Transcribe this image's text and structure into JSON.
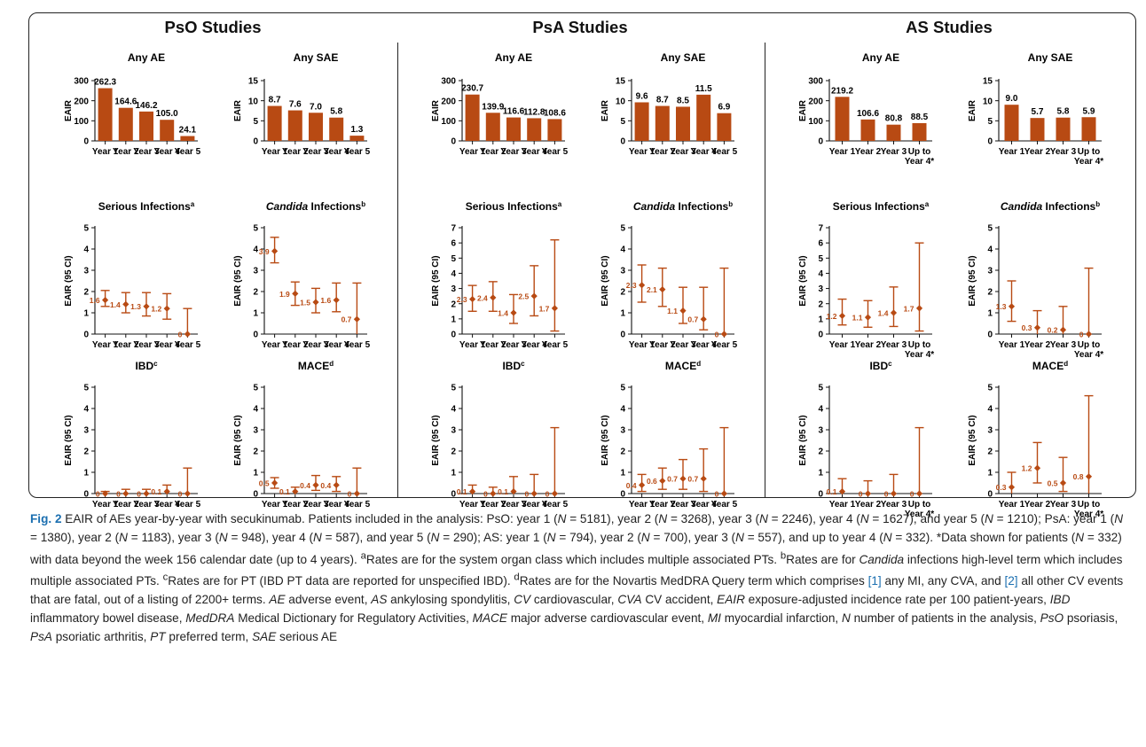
{
  "panels": [
    {
      "title": "PsO Studies"
    },
    {
      "title": "PsA Studies"
    },
    {
      "title": "AS Studies"
    }
  ],
  "chart_data": [
    {
      "type": "bar",
      "panel": "PsO Studies",
      "title": "Any AE",
      "ylabel": "EAIR",
      "ylim": [
        0,
        300
      ],
      "yticks": [
        0,
        100,
        200,
        300
      ],
      "categories": [
        "Year 1",
        "Year 2",
        "Year 3",
        "Year 4",
        "Year 5"
      ],
      "values": [
        262.3,
        164.6,
        146.2,
        105.0,
        24.1
      ],
      "labels": [
        "262.3",
        "164.6",
        "146.2",
        "105.0",
        "24.1"
      ],
      "color": "#b84a13"
    },
    {
      "type": "bar",
      "panel": "PsO Studies",
      "title": "Any SAE",
      "ylabel": "EAIR",
      "ylim": [
        0,
        15
      ],
      "yticks": [
        0,
        5,
        10,
        15
      ],
      "categories": [
        "Year 1",
        "Year 2",
        "Year 3",
        "Year 4",
        "Year 5"
      ],
      "values": [
        8.7,
        7.6,
        7.0,
        5.8,
        1.3
      ],
      "labels": [
        "8.7",
        "7.6",
        "7.0",
        "5.8",
        "1.3"
      ],
      "color": "#b84a13"
    },
    {
      "type": "bar",
      "panel": "PsA Studies",
      "title": "Any AE",
      "ylabel": "EAIR",
      "ylim": [
        0,
        300
      ],
      "yticks": [
        0,
        100,
        200,
        300
      ],
      "categories": [
        "Year 1",
        "Year 2",
        "Year 3",
        "Year 4",
        "Year 5"
      ],
      "values": [
        230.7,
        139.9,
        116.6,
        112.8,
        108.6
      ],
      "labels": [
        "230.7",
        "139.9",
        "116.6",
        "112.8",
        "108.6"
      ],
      "color": "#b84a13"
    },
    {
      "type": "bar",
      "panel": "PsA Studies",
      "title": "Any SAE",
      "ylabel": "EAIR",
      "ylim": [
        0,
        15
      ],
      "yticks": [
        0,
        5,
        10,
        15
      ],
      "categories": [
        "Year 1",
        "Year 2",
        "Year 3",
        "Year 4",
        "Year 5"
      ],
      "values": [
        9.6,
        8.7,
        8.5,
        11.5,
        6.9
      ],
      "labels": [
        "9.6",
        "8.7",
        "8.5",
        "11.5",
        "6.9"
      ],
      "color": "#b84a13"
    },
    {
      "type": "bar",
      "panel": "AS Studies",
      "title": "Any AE",
      "ylabel": "EAIR",
      "ylim": [
        0,
        300
      ],
      "yticks": [
        0,
        100,
        200,
        300
      ],
      "categories": [
        "Year 1",
        "Year 2",
        "Year 3",
        "Up to\nYear 4*"
      ],
      "values": [
        219.2,
        106.6,
        80.8,
        88.5
      ],
      "labels": [
        "219.2",
        "106.6",
        "80.8",
        "88.5"
      ],
      "color": "#b84a13"
    },
    {
      "type": "bar",
      "panel": "AS Studies",
      "title": "Any SAE",
      "ylabel": "EAIR",
      "ylim": [
        0,
        15
      ],
      "yticks": [
        0,
        5,
        10,
        15
      ],
      "categories": [
        "Year 1",
        "Year 2",
        "Year 3",
        "Up to\nYear 4*"
      ],
      "values": [
        9.0,
        5.7,
        5.8,
        5.9
      ],
      "labels": [
        "9.0",
        "5.7",
        "5.8",
        "5.9"
      ],
      "color": "#b84a13"
    },
    {
      "type": "errorbar",
      "panel": "PsO Studies",
      "title": "Serious Infections",
      "title_sup": "a",
      "ylabel": "EAIR (95 CI)",
      "ylim": [
        0,
        5
      ],
      "yticks": [
        0,
        1,
        2,
        3,
        4,
        5
      ],
      "categories": [
        "Year 1",
        "Year 2",
        "Year 3",
        "Year 4",
        "Year 5"
      ],
      "values": [
        1.6,
        1.4,
        1.3,
        1.2,
        0
      ],
      "lower": [
        1.3,
        1.0,
        0.85,
        0.7,
        0
      ],
      "upper": [
        2.05,
        1.95,
        1.95,
        1.9,
        1.2
      ],
      "labels": [
        "1.6",
        "1.4",
        "1.3",
        "1.2",
        "0"
      ],
      "color": "#b84a13"
    },
    {
      "type": "errorbar",
      "panel": "PsO Studies",
      "title": "Infections",
      "title_italic_prefix": "Candida",
      "title_sup": "b",
      "ylabel": "EAIR (95 CI)",
      "ylim": [
        0,
        5
      ],
      "yticks": [
        0,
        1,
        2,
        3,
        4,
        5
      ],
      "categories": [
        "Year 1",
        "Year 2",
        "Year 3",
        "Year 4",
        "Year 5"
      ],
      "values": [
        3.9,
        1.9,
        1.5,
        1.6,
        0.7
      ],
      "lower": [
        3.35,
        1.35,
        1.0,
        1.05,
        0
      ],
      "upper": [
        4.55,
        2.45,
        2.15,
        2.4,
        2.4
      ],
      "labels": [
        "3.9",
        "1.9",
        "1.5",
        "1.6",
        "0.7"
      ],
      "color": "#b84a13"
    },
    {
      "type": "errorbar",
      "panel": "PsA Studies",
      "title": "Serious Infections",
      "title_sup": "a",
      "ylabel": "EAIR (95 CI)",
      "ylim": [
        0,
        7
      ],
      "yticks": [
        0,
        1,
        2,
        3,
        4,
        5,
        6,
        7
      ],
      "categories": [
        "Year 1",
        "Year 2",
        "Year 3",
        "Year 4",
        "Year 5"
      ],
      "values": [
        2.3,
        2.4,
        1.4,
        2.5,
        1.7
      ],
      "lower": [
        1.5,
        1.5,
        0.7,
        1.2,
        0.2
      ],
      "upper": [
        3.2,
        3.45,
        2.6,
        4.5,
        6.2
      ],
      "labels": [
        "2.3",
        "2.4",
        "1.4",
        "2.5",
        "1.7"
      ],
      "color": "#b84a13"
    },
    {
      "type": "errorbar",
      "panel": "PsA Studies",
      "title": "Infections",
      "title_italic_prefix": "Candida",
      "title_sup": "b",
      "ylabel": "EAIR (95 CI)",
      "ylim": [
        0,
        5
      ],
      "yticks": [
        0,
        1,
        2,
        3,
        4,
        5
      ],
      "categories": [
        "Year 1",
        "Year 2",
        "Year 3",
        "Year 4",
        "Year 5"
      ],
      "values": [
        2.3,
        2.1,
        1.1,
        0.7,
        0
      ],
      "lower": [
        1.5,
        1.3,
        0.5,
        0.2,
        0
      ],
      "upper": [
        3.25,
        3.1,
        2.2,
        2.2,
        3.1
      ],
      "labels": [
        "2.3",
        "2.1",
        "1.1",
        "0.7",
        "0"
      ],
      "color": "#b84a13"
    },
    {
      "type": "errorbar",
      "panel": "AS Studies",
      "title": "Serious Infections",
      "title_sup": "a",
      "ylabel": "EAIR (95 CI)",
      "ylim": [
        0,
        7
      ],
      "yticks": [
        0,
        1,
        2,
        3,
        4,
        5,
        6,
        7
      ],
      "categories": [
        "Year 1",
        "Year 2",
        "Year 3",
        "Up to\nYear 4*"
      ],
      "values": [
        1.2,
        1.1,
        1.4,
        1.7
      ],
      "lower": [
        0.6,
        0.45,
        0.5,
        0.2
      ],
      "upper": [
        2.3,
        2.2,
        3.1,
        6.0
      ],
      "labels": [
        "1.2",
        "1.1",
        "1.4",
        "1.7"
      ],
      "color": "#b84a13"
    },
    {
      "type": "errorbar",
      "panel": "AS Studies",
      "title": "Infections",
      "title_italic_prefix": "Candida",
      "title_sup": "b",
      "ylabel": "EAIR (95 CI)",
      "ylim": [
        0,
        5
      ],
      "yticks": [
        0,
        1,
        2,
        3,
        4,
        5
      ],
      "categories": [
        "Year 1",
        "Year 2",
        "Year 3",
        "Up to\nYear 4*"
      ],
      "values": [
        1.3,
        0.3,
        0.2,
        0
      ],
      "lower": [
        0.6,
        0,
        0,
        0
      ],
      "upper": [
        2.5,
        1.1,
        1.3,
        3.1
      ],
      "labels": [
        "1.3",
        "0.3",
        "0.2",
        "0"
      ],
      "color": "#b84a13"
    },
    {
      "type": "errorbar",
      "panel": "PsO Studies",
      "title": "IBD",
      "title_sup": "c",
      "ylabel": "EAIR (95 CI)",
      "ylim": [
        0,
        5
      ],
      "yticks": [
        0,
        1,
        2,
        3,
        4,
        5
      ],
      "categories": [
        "Year 1",
        "Year 2",
        "Year 3",
        "Year 4",
        "Year 5"
      ],
      "values": [
        0,
        0,
        0,
        0.1,
        0
      ],
      "lower": [
        0,
        0,
        0,
        0,
        0
      ],
      "upper": [
        0.1,
        0.2,
        0.2,
        0.4,
        1.2
      ],
      "labels": [
        "0",
        "0",
        "0",
        "0.1",
        "0"
      ],
      "color": "#b84a13"
    },
    {
      "type": "errorbar",
      "panel": "PsO Studies",
      "title": "MACE",
      "title_sup": "d",
      "ylabel": "EAIR (95 CI)",
      "ylim": [
        0,
        5
      ],
      "yticks": [
        0,
        1,
        2,
        3,
        4,
        5
      ],
      "categories": [
        "Year 1",
        "Year 2",
        "Year 3",
        "Year 4",
        "Year 5"
      ],
      "values": [
        0.5,
        0.1,
        0.4,
        0.4,
        0
      ],
      "lower": [
        0.25,
        0,
        0.15,
        0.1,
        0
      ],
      "upper": [
        0.75,
        0.3,
        0.85,
        0.8,
        1.2
      ],
      "labels": [
        "0.5",
        "0.1",
        "0.4",
        "0.4",
        "0"
      ],
      "color": "#b84a13"
    },
    {
      "type": "errorbar",
      "panel": "PsA Studies",
      "title": "IBD",
      "title_sup": "c",
      "ylabel": "EAIR (95 CI)",
      "ylim": [
        0,
        5
      ],
      "yticks": [
        0,
        1,
        2,
        3,
        4,
        5
      ],
      "categories": [
        "Year 1",
        "Year 2",
        "Year 3",
        "Year 4",
        "Year 5"
      ],
      "values": [
        0.1,
        0,
        0.1,
        0,
        0
      ],
      "lower": [
        0,
        0,
        0,
        0,
        0
      ],
      "upper": [
        0.4,
        0.3,
        0.8,
        0.9,
        3.1
      ],
      "labels": [
        "0.1",
        "0",
        "0.1",
        "0",
        "0"
      ],
      "color": "#b84a13"
    },
    {
      "type": "errorbar",
      "panel": "PsA Studies",
      "title": "MACE",
      "title_sup": "d",
      "ylabel": "EAIR (95 CI)",
      "ylim": [
        0,
        5
      ],
      "yticks": [
        0,
        1,
        2,
        3,
        4,
        5
      ],
      "categories": [
        "Year 1",
        "Year 2",
        "Year 3",
        "Year 4",
        "Year 5"
      ],
      "values": [
        0.4,
        0.6,
        0.7,
        0.7,
        0
      ],
      "lower": [
        0.1,
        0.2,
        0.2,
        0.1,
        0
      ],
      "upper": [
        0.9,
        1.2,
        1.6,
        2.1,
        3.1
      ],
      "labels": [
        "0.4",
        "0.6",
        "0.7",
        "0.7",
        "0"
      ],
      "color": "#b84a13"
    },
    {
      "type": "errorbar",
      "panel": "AS Studies",
      "title": "IBD",
      "title_sup": "c",
      "ylabel": "EAIR (95 CI)",
      "ylim": [
        0,
        5
      ],
      "yticks": [
        0,
        1,
        2,
        3,
        4,
        5
      ],
      "categories": [
        "Year 1",
        "Year 2",
        "Year 3",
        "Up to\nYear 4*"
      ],
      "values": [
        0.1,
        0,
        0,
        0
      ],
      "lower": [
        0,
        0,
        0,
        0
      ],
      "upper": [
        0.7,
        0.6,
        0.9,
        3.1
      ],
      "labels": [
        "0.1",
        "0",
        "0",
        "0"
      ],
      "color": "#b84a13"
    },
    {
      "type": "errorbar",
      "panel": "AS Studies",
      "title": "MACE",
      "title_sup": "d",
      "ylabel": "EAIR (95 CI)",
      "ylim": [
        0,
        5
      ],
      "yticks": [
        0,
        1,
        2,
        3,
        4,
        5
      ],
      "categories": [
        "Year 1",
        "Year 2",
        "Year 3",
        "Up to\nYear 4*"
      ],
      "values": [
        0.3,
        1.2,
        0.5,
        0.8
      ],
      "lower": [
        0,
        0.5,
        0.1,
        0
      ],
      "upper": [
        1.0,
        2.4,
        1.7,
        4.6
      ],
      "labels": [
        "0.3",
        "1.2",
        "0.5",
        "0.8"
      ],
      "color": "#b84a13"
    }
  ],
  "caption": {
    "fig_label": "Fig. 2",
    "segments": [
      {
        "t": " EAIR of AEs year-by-year with secukinumab. Patients included in the analysis: PsO: year 1 ("
      },
      {
        "t": "N",
        "i": true
      },
      {
        "t": " = 5181), year 2 ("
      },
      {
        "t": "N",
        "i": true
      },
      {
        "t": " = 3268), year 3 ("
      },
      {
        "t": "N",
        "i": true
      },
      {
        "t": " = 2246), year 4 ("
      },
      {
        "t": "N",
        "i": true
      },
      {
        "t": " = 1627), and year 5 ("
      },
      {
        "t": "N",
        "i": true
      },
      {
        "t": " = 1210); PsA: year 1 ("
      },
      {
        "t": "N",
        "i": true
      },
      {
        "t": " = 1380), year 2 ("
      },
      {
        "t": "N",
        "i": true
      },
      {
        "t": " = 1183), year 3 ("
      },
      {
        "t": "N",
        "i": true
      },
      {
        "t": " = 948), year 4 ("
      },
      {
        "t": "N",
        "i": true
      },
      {
        "t": " = 587), and year 5 ("
      },
      {
        "t": "N",
        "i": true
      },
      {
        "t": " = 290); AS: year 1 ("
      },
      {
        "t": "N",
        "i": true
      },
      {
        "t": " = 794), year 2 ("
      },
      {
        "t": "N",
        "i": true
      },
      {
        "t": " = 700), year 3 ("
      },
      {
        "t": "N",
        "i": true
      },
      {
        "t": " = 557), and up to year 4 ("
      },
      {
        "t": "N",
        "i": true
      },
      {
        "t": " = 332). *Data shown for patients ("
      },
      {
        "t": "N",
        "i": true
      },
      {
        "t": " = 332) with data beyond the week 156 calendar date (up to 4 years). "
      },
      {
        "t": "a",
        "sup": true
      },
      {
        "t": "Rates are for the system organ class which includes multiple associated PTs. "
      },
      {
        "t": "b",
        "sup": true
      },
      {
        "t": "Rates are for "
      },
      {
        "t": "Candida",
        "i": true
      },
      {
        "t": " infections high-level term which includes multiple associated PTs. "
      },
      {
        "t": "c",
        "sup": true
      },
      {
        "t": "Rates are for PT (IBD PT data are reported for unspecified IBD). "
      },
      {
        "t": "d",
        "sup": true
      },
      {
        "t": "Rates are for the Novartis MedDRA Query term which comprises "
      },
      {
        "t": "[1]",
        "ref": true
      },
      {
        "t": " any MI, any CVA, and "
      },
      {
        "t": "[2]",
        "ref": true
      },
      {
        "t": " all other CV events that are fatal, out of a listing of 2200+ terms. "
      },
      {
        "t": "AE",
        "i": true
      },
      {
        "t": " adverse event, "
      },
      {
        "t": "AS",
        "i": true
      },
      {
        "t": " ankylosing spondylitis, "
      },
      {
        "t": "CV",
        "i": true
      },
      {
        "t": " cardiovascular, "
      },
      {
        "t": "CVA",
        "i": true
      },
      {
        "t": " CV accident, "
      },
      {
        "t": "EAIR",
        "i": true
      },
      {
        "t": " exposure-adjusted incidence rate per 100 patient-years, "
      },
      {
        "t": "IBD",
        "i": true
      },
      {
        "t": " inflammatory bowel disease, "
      },
      {
        "t": "MedDRA",
        "i": true
      },
      {
        "t": " Medical Dictionary for Regulatory Activities, "
      },
      {
        "t": "MACE",
        "i": true
      },
      {
        "t": " major adverse cardiovascular event, "
      },
      {
        "t": "MI",
        "i": true
      },
      {
        "t": " myocardial infarction, "
      },
      {
        "t": "N",
        "i": true
      },
      {
        "t": " number of patients in the analysis, "
      },
      {
        "t": "PsO",
        "i": true
      },
      {
        "t": " psoriasis, "
      },
      {
        "t": "PsA",
        "i": true
      },
      {
        "t": " psoriatic arthritis, "
      },
      {
        "t": "PT",
        "i": true
      },
      {
        "t": " preferred term, "
      },
      {
        "t": "SAE",
        "i": true
      },
      {
        "t": " serious AE"
      }
    ]
  }
}
